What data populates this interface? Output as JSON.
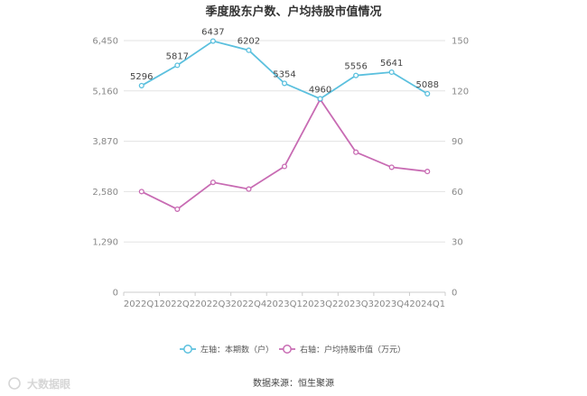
{
  "chart_data": {
    "type": "line",
    "title": "季度股东户数、户均持股市值情况",
    "categories": [
      "2022Q1",
      "2022Q2",
      "2022Q3",
      "2022Q4",
      "2023Q1",
      "2023Q2",
      "2023Q3",
      "2023Q4",
      "2024Q1"
    ],
    "left_axis": {
      "ticks": [
        "0",
        "1,290",
        "2,580",
        "3,870",
        "5,160",
        "6,450"
      ],
      "ylim": [
        0,
        6450
      ]
    },
    "right_axis": {
      "ticks": [
        "0",
        "30",
        "60",
        "90",
        "120",
        "150"
      ],
      "ylim": [
        0,
        150
      ]
    },
    "series": [
      {
        "name": "左轴：本期数（户）",
        "axis": "left",
        "color": "#5bc0de",
        "values": [
          5296,
          5817,
          6437,
          6202,
          5354,
          4960,
          5556,
          5641,
          5088
        ],
        "labels": [
          "5296",
          "5817",
          "6437",
          "6202",
          "5354",
          "4960",
          "5556",
          "5641",
          "5088"
        ]
      },
      {
        "name": "右轴：户均持股市值（万元）",
        "axis": "right",
        "color": "#c86bb3",
        "values": [
          60,
          49.5,
          65.5,
          61.5,
          75,
          115,
          83.5,
          74.5,
          72
        ]
      }
    ],
    "grid": true,
    "legend_position": "bottom"
  },
  "source": "数据来源：恒生聚源",
  "watermark": "大数据眼"
}
